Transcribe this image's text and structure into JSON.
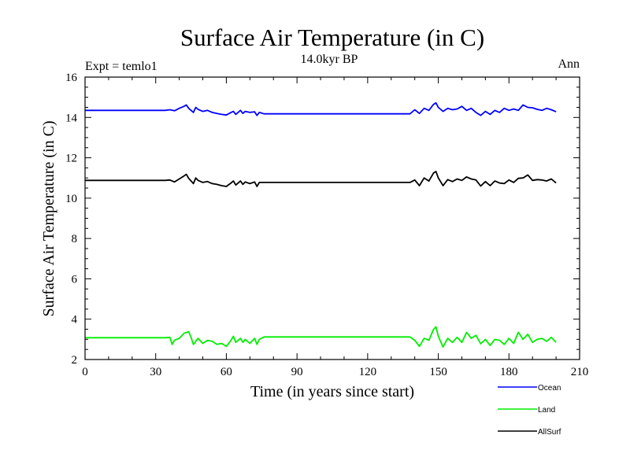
{
  "chart_data": {
    "type": "line",
    "title": "Surface Air Temperature (in C)",
    "subtitle": "14.0kyr BP",
    "top_left_label": "Expt = temlo1",
    "top_right_label": "Ann",
    "xlabel": "Time (in years since start)",
    "ylabel": "Surface Air Temperature (in C)",
    "xlim": [
      0,
      210
    ],
    "ylim": [
      2,
      16
    ],
    "xticks": [
      0,
      30,
      60,
      90,
      120,
      150,
      180,
      210
    ],
    "yticks": [
      2,
      4,
      6,
      8,
      10,
      12,
      14,
      16
    ],
    "legend_position": "bottom-right, below plot",
    "series": [
      {
        "name": "Ocean",
        "color": "#0000ff",
        "x": [
          0,
          34,
          36,
          38,
          40,
          42,
          43,
          44,
          46,
          47,
          48,
          50,
          52,
          54,
          56,
          58,
          60,
          62,
          63,
          64,
          66,
          67,
          68,
          70,
          72,
          73,
          74,
          76,
          138,
          140,
          142,
          144,
          146,
          148,
          149,
          150,
          152,
          154,
          156,
          158,
          160,
          162,
          164,
          166,
          168,
          170,
          172,
          174,
          176,
          178,
          180,
          182,
          184,
          186,
          188,
          190,
          192,
          194,
          196,
          198,
          200
        ],
        "values": [
          14.35,
          14.35,
          14.38,
          14.33,
          14.45,
          14.55,
          14.62,
          14.45,
          14.25,
          14.5,
          14.4,
          14.3,
          14.35,
          14.25,
          14.2,
          14.15,
          14.12,
          14.25,
          14.3,
          14.15,
          14.35,
          14.2,
          14.3,
          14.25,
          14.28,
          14.1,
          14.25,
          14.18,
          14.18,
          14.38,
          14.2,
          14.45,
          14.35,
          14.65,
          14.72,
          14.5,
          14.3,
          14.45,
          14.38,
          14.42,
          14.55,
          14.35,
          14.45,
          14.25,
          14.1,
          14.3,
          14.15,
          14.35,
          14.25,
          14.45,
          14.35,
          14.42,
          14.35,
          14.62,
          14.5,
          14.48,
          14.4,
          14.35,
          14.45,
          14.38,
          14.28
        ]
      },
      {
        "name": "Land",
        "color": "#00ee00",
        "x": [
          0,
          34,
          36,
          37,
          38,
          40,
          42,
          44,
          45,
          46,
          48,
          50,
          52,
          54,
          56,
          58,
          60,
          62,
          63,
          64,
          66,
          67,
          68,
          70,
          72,
          73,
          74,
          76,
          138,
          140,
          142,
          144,
          146,
          148,
          149,
          150,
          152,
          154,
          156,
          158,
          160,
          162,
          164,
          166,
          168,
          170,
          172,
          174,
          176,
          178,
          180,
          182,
          184,
          186,
          188,
          190,
          192,
          194,
          196,
          198,
          200
        ],
        "values": [
          3.08,
          3.08,
          3.1,
          2.75,
          2.95,
          3.05,
          3.3,
          3.38,
          3.1,
          2.75,
          3.05,
          2.8,
          2.95,
          2.9,
          2.75,
          2.8,
          2.65,
          2.95,
          3.15,
          2.85,
          3.05,
          2.85,
          3.0,
          2.8,
          3.05,
          2.75,
          3.0,
          3.12,
          3.12,
          2.95,
          2.65,
          3.05,
          2.95,
          3.5,
          3.62,
          3.15,
          2.62,
          3.05,
          2.85,
          3.1,
          2.85,
          3.35,
          3.05,
          3.2,
          2.78,
          3.0,
          2.7,
          3.0,
          2.95,
          2.75,
          3.05,
          2.8,
          3.35,
          3.0,
          3.25,
          2.85,
          3.0,
          3.05,
          2.9,
          3.1,
          2.85
        ]
      },
      {
        "name": "AllSurf",
        "color": "#000000",
        "x": [
          0,
          34,
          36,
          38,
          40,
          42,
          43,
          44,
          46,
          47,
          48,
          50,
          52,
          54,
          56,
          58,
          60,
          62,
          63,
          64,
          66,
          67,
          68,
          70,
          72,
          73,
          74,
          76,
          138,
          140,
          142,
          144,
          146,
          148,
          149,
          150,
          152,
          154,
          156,
          158,
          160,
          162,
          164,
          166,
          168,
          170,
          172,
          174,
          176,
          178,
          180,
          182,
          184,
          186,
          188,
          190,
          192,
          194,
          196,
          198,
          200
        ],
        "values": [
          10.88,
          10.88,
          10.9,
          10.8,
          10.95,
          11.1,
          11.18,
          10.98,
          10.72,
          11.0,
          10.88,
          10.78,
          10.82,
          10.72,
          10.68,
          10.62,
          10.58,
          10.75,
          10.85,
          10.65,
          10.85,
          10.68,
          10.8,
          10.72,
          10.8,
          10.58,
          10.78,
          10.78,
          10.78,
          10.9,
          10.62,
          11.0,
          10.85,
          11.25,
          11.32,
          11.0,
          10.62,
          10.92,
          10.82,
          10.95,
          10.88,
          11.05,
          10.95,
          10.9,
          10.6,
          10.82,
          10.62,
          10.85,
          10.75,
          10.72,
          10.9,
          10.78,
          10.98,
          11.0,
          11.15,
          10.88,
          10.92,
          10.9,
          10.85,
          10.95,
          10.75
        ]
      }
    ]
  }
}
